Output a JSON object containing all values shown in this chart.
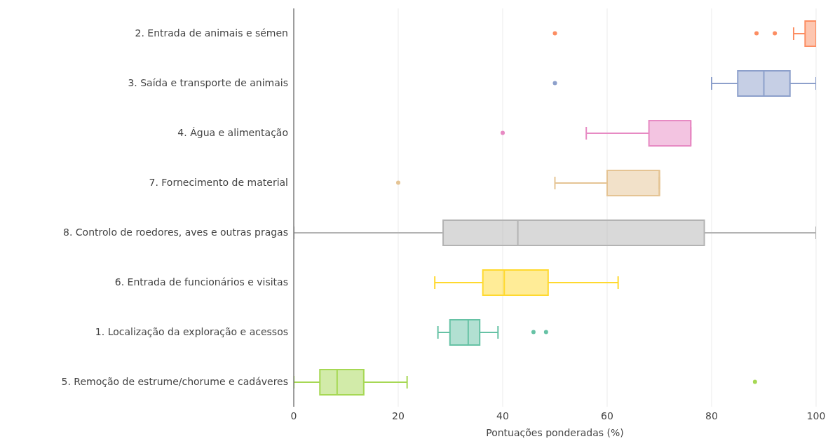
{
  "chart_data": {
    "type": "box",
    "orientation": "horizontal",
    "categories": [
      "2. Entrada de animais e sémen",
      "3. Saída e transporte de animais",
      "4. Água e alimentação",
      "7. Fornecimento de material",
      "8. Controlo de roedores, aves e outras pragas",
      "6. Entrada de funcionários e visitas",
      "1. Localização da exploração e acessos",
      "5. Remoção de estrume/chorume e cadáveres"
    ],
    "colors": [
      "#fc8d62",
      "#8da0cb",
      "#e78ac3",
      "#e5c494",
      "#b3b3b3",
      "#ffd92f",
      "#66c2a5",
      "#a6d854"
    ],
    "boxes": [
      {
        "low": 95.7,
        "q1": 97.9,
        "median": 100,
        "q3": 100,
        "high": 100,
        "outliers": [
          50,
          88.6,
          92.1
        ]
      },
      {
        "low": 80,
        "q1": 85,
        "median": 90,
        "q3": 95,
        "high": 100,
        "outliers": [
          50
        ]
      },
      {
        "low": 56,
        "q1": 68,
        "median": 76,
        "q3": 76,
        "high": 76,
        "outliers": [
          40
        ]
      },
      {
        "low": 50,
        "q1": 60,
        "median": 70,
        "q3": 70,
        "high": 70,
        "outliers": [
          20
        ]
      },
      {
        "low": 0,
        "q1": 28.6,
        "median": 42.9,
        "q3": 78.6,
        "high": 100
      },
      {
        "low": 27,
        "q1": 36.2,
        "median": 40.3,
        "q3": 48.7,
        "high": 62.1
      },
      {
        "low": 27.6,
        "q1": 29.9,
        "median": 33.4,
        "q3": 35.6,
        "high": 39.1,
        "outliers": [
          45.9,
          48.3
        ]
      },
      {
        "low": 0,
        "q1": 5,
        "median": 8.3,
        "q3": 13.4,
        "high": 21.7,
        "outliers": [
          88.3
        ]
      }
    ],
    "xlabel": "Pontuações ponderadas (%)",
    "xlim": [
      0,
      100
    ],
    "xticks": [
      0,
      20,
      40,
      60,
      80,
      100
    ],
    "grid": "x"
  }
}
